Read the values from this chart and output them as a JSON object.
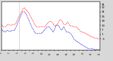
{
  "bg_color": "#d8d8d8",
  "plot_bg": "#ffffff",
  "line_color_temp": "#ff0000",
  "line_color_wind": "#0000cc",
  "vline_x": 0.185,
  "y_min": -20,
  "y_max": 45,
  "y_ticks": [
    -5,
    1,
    7,
    13,
    19,
    25,
    31,
    37,
    41
  ],
  "temp_profile": [
    14,
    14,
    13,
    13,
    12,
    12,
    11,
    11,
    11,
    11,
    11,
    11,
    11,
    11,
    11,
    12,
    12,
    13,
    13,
    14,
    14,
    14,
    14,
    14,
    14,
    13,
    13,
    13,
    13,
    13,
    13,
    13,
    13,
    13,
    14,
    14,
    14,
    14,
    14,
    14,
    14,
    14,
    14,
    15,
    15,
    16,
    17,
    18,
    19,
    20,
    21,
    22,
    23,
    24,
    25,
    25,
    26,
    26,
    27,
    28,
    29,
    30,
    31,
    32,
    33,
    33,
    34,
    35,
    36,
    36,
    36,
    36,
    36,
    35,
    34,
    34,
    33,
    33,
    33,
    32,
    32,
    31,
    31,
    30,
    29,
    28,
    28,
    27,
    26,
    25,
    24,
    23,
    23,
    22,
    21,
    20,
    20,
    19,
    18,
    17,
    16,
    15,
    14,
    13,
    13,
    12,
    12,
    11,
    11,
    11,
    11,
    11,
    11,
    11,
    11,
    11,
    11,
    11,
    11,
    11,
    11,
    11,
    11,
    11,
    11,
    11,
    11,
    11,
    11,
    11,
    11,
    11,
    11,
    11,
    12,
    12,
    13,
    13,
    14,
    14,
    15,
    15,
    16,
    16,
    17,
    17,
    18,
    18,
    18,
    18,
    18,
    18,
    18,
    18,
    17,
    17,
    16,
    15,
    15,
    14,
    14,
    13,
    13,
    12,
    12,
    12,
    12,
    13,
    13,
    14,
    14,
    15,
    15,
    16,
    17,
    18,
    19,
    19,
    20,
    20,
    20,
    20,
    20,
    20,
    19,
    19,
    18,
    17,
    16,
    15,
    15,
    14,
    14,
    14,
    14,
    14,
    14,
    15,
    15,
    15,
    16,
    17,
    17,
    17,
    17,
    16,
    15,
    14,
    13,
    13,
    13,
    12,
    12,
    12,
    12,
    12,
    12,
    12,
    12,
    12,
    11,
    11,
    11,
    11,
    11,
    11,
    11,
    11,
    11,
    11,
    10,
    10,
    9,
    9,
    8,
    8,
    8,
    8,
    7,
    7,
    6,
    5,
    4,
    4,
    4,
    4,
    4,
    4,
    4,
    4,
    3,
    3,
    3,
    3,
    3,
    2,
    2,
    2,
    2,
    1,
    1,
    1,
    1,
    0,
    0,
    0,
    0,
    -1,
    -1,
    -1,
    -1,
    -2,
    -2,
    -2,
    -2,
    -2,
    -2,
    -3,
    -3,
    -3,
    -3,
    -3,
    -3,
    -4,
    -4,
    -4,
    -4,
    -4,
    -4,
    -4,
    -4,
    -4,
    -5,
    -5,
    -5,
    -5,
    -5,
    -5,
    -5,
    -5
  ],
  "wind_profile": [
    8,
    8,
    7,
    7,
    6,
    6,
    5,
    5,
    5,
    4,
    4,
    4,
    4,
    4,
    4,
    5,
    5,
    5,
    6,
    6,
    6,
    6,
    6,
    5,
    5,
    5,
    5,
    5,
    5,
    5,
    5,
    5,
    6,
    6,
    6,
    6,
    6,
    6,
    6,
    6,
    6,
    7,
    7,
    8,
    9,
    10,
    11,
    12,
    13,
    14,
    16,
    17,
    18,
    19,
    20,
    21,
    22,
    23,
    24,
    25,
    26,
    27,
    28,
    29,
    30,
    30,
    31,
    31,
    31,
    31,
    31,
    31,
    30,
    30,
    29,
    28,
    28,
    27,
    26,
    25,
    24,
    23,
    22,
    21,
    20,
    19,
    18,
    17,
    16,
    15,
    14,
    13,
    12,
    11,
    10,
    9,
    8,
    8,
    7,
    6,
    5,
    4,
    4,
    3,
    3,
    2,
    2,
    2,
    2,
    2,
    2,
    2,
    2,
    2,
    2,
    2,
    2,
    2,
    2,
    2,
    2,
    2,
    2,
    2,
    3,
    3,
    4,
    4,
    5,
    5,
    6,
    6,
    7,
    7,
    8,
    8,
    9,
    9,
    10,
    10,
    11,
    11,
    11,
    11,
    11,
    11,
    11,
    11,
    10,
    10,
    9,
    8,
    8,
    7,
    7,
    6,
    5,
    5,
    4,
    4,
    5,
    6,
    7,
    8,
    9,
    10,
    11,
    12,
    13,
    13,
    13,
    13,
    13,
    13,
    13,
    13,
    12,
    11,
    10,
    9,
    8,
    8,
    7,
    7,
    7,
    7,
    8,
    8,
    9,
    10,
    11,
    11,
    10,
    9,
    8,
    7,
    6,
    5,
    5,
    4,
    4,
    4,
    4,
    4,
    4,
    3,
    3,
    3,
    3,
    2,
    2,
    2,
    2,
    1,
    0,
    -1,
    -1,
    -2,
    -2,
    -3,
    -4,
    -5,
    -6,
    -6,
    -6,
    -7,
    -7,
    -7,
    -8,
    -8,
    -8,
    -9,
    -9,
    -9,
    -10,
    -10,
    -10,
    -11,
    -11,
    -11,
    -12,
    -12,
    -12,
    -13,
    -13,
    -13,
    -13,
    -13,
    -14,
    -14,
    -14,
    -15,
    -15,
    -15,
    -15,
    -16,
    -16,
    -16,
    -16,
    -17,
    -17,
    -17,
    -17,
    -18,
    -18,
    -18,
    -18,
    -18,
    -18,
    -18,
    -18,
    -18,
    -18,
    -18,
    -18,
    -18,
    -18,
    -18,
    -18,
    -18,
    -19,
    -19,
    -19,
    -19,
    -19,
    -19,
    -19,
    -19,
    -19,
    -19,
    -19,
    -19,
    -19,
    -19,
    -19,
    -19,
    -19,
    -19,
    -19,
    -19
  ]
}
